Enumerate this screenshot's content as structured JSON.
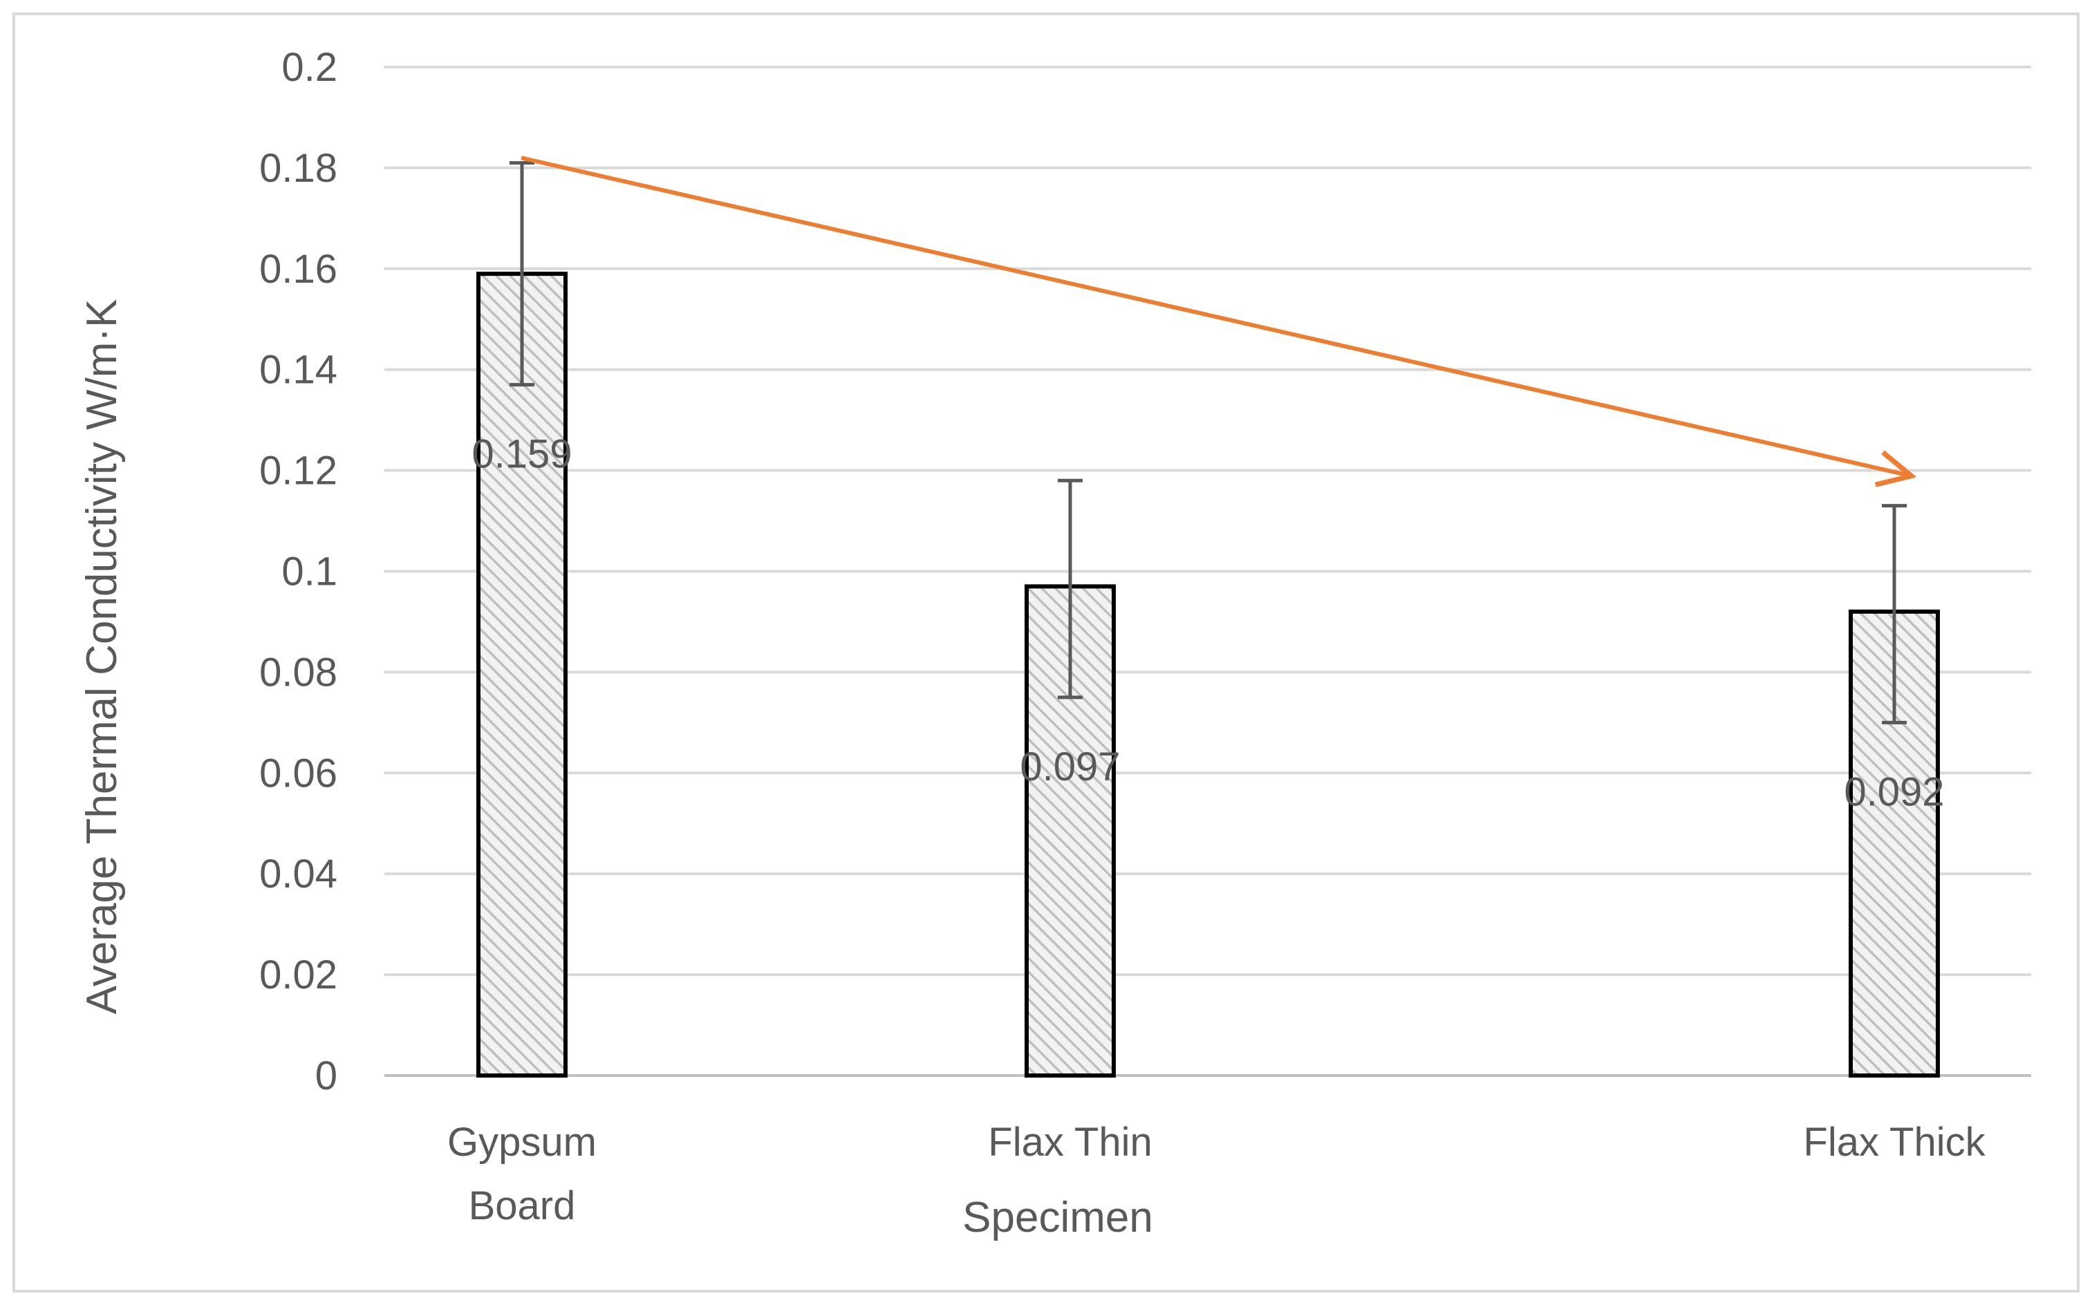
{
  "chart_data": {
    "type": "bar",
    "categories": [
      "Gypsum Board",
      "Flax Thin",
      "Flax Thick"
    ],
    "category_lines": [
      [
        "Gypsum",
        "Board"
      ],
      [
        "Flax Thin"
      ],
      [
        "Flax Thick"
      ]
    ],
    "values": [
      0.159,
      0.097,
      0.092
    ],
    "data_labels": [
      "0.159",
      "0.097",
      "0.092"
    ],
    "error_bars": [
      {
        "lower": 0.137,
        "upper": 0.181
      },
      {
        "lower": 0.075,
        "upper": 0.118
      },
      {
        "lower": 0.07,
        "upper": 0.113
      }
    ],
    "xlabel": "Specimen",
    "ylabel": "Average Thermal Conductivity W/m·K",
    "ylim": [
      0,
      0.2
    ],
    "yticks": [
      "0",
      "0.02",
      "0.04",
      "0.06",
      "0.08",
      "0.1",
      "0.12",
      "0.14",
      "0.16",
      "0.18",
      "0.2"
    ],
    "grid": true,
    "legend": "none",
    "bar_fill": "hatched light gray",
    "trend_arrow": {
      "from_y": 0.182,
      "to_y": 0.119,
      "color": "#ed7d31"
    },
    "colors": {
      "bar_stroke": "#000000",
      "hatch": "#bfbfbf",
      "grid": "#d9d9d9",
      "error": "#595959",
      "arrow": "#ed7d31"
    }
  }
}
